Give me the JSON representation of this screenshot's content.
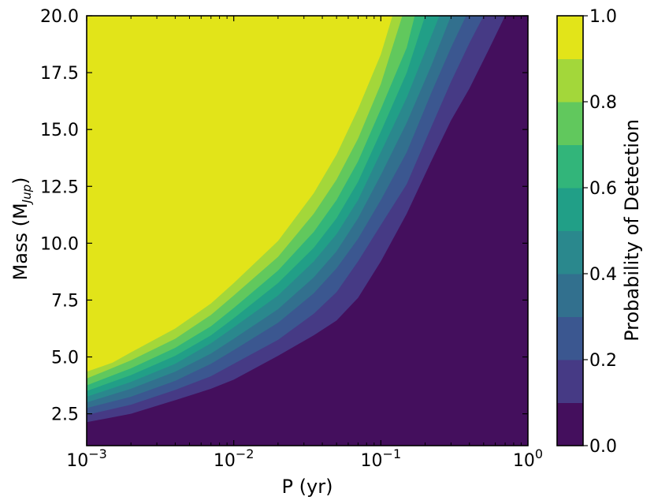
{
  "chart_data": {
    "type": "heatmap",
    "subtype": "filled-contour",
    "title": "",
    "xlabel": "P (yr)",
    "ylabel": "Mass (M_Jup)",
    "ylabel_main": "Mass (M",
    "ylabel_sub": "Jup",
    "ylabel_close": ")",
    "xscale": "log",
    "xlim": [
      0.001,
      1
    ],
    "ylim": [
      1.1,
      20.0
    ],
    "x_ticks": [
      {
        "base": "10",
        "exp": "−3",
        "value": 0.001
      },
      {
        "base": "10",
        "exp": "−2",
        "value": 0.01
      },
      {
        "base": "10",
        "exp": "−1",
        "value": 0.1
      },
      {
        "base": "10",
        "exp": "0",
        "value": 1
      }
    ],
    "y_ticks": [
      "2.5",
      "5.0",
      "7.5",
      "10.0",
      "12.5",
      "15.0",
      "17.5",
      "20.0"
    ],
    "colorbar": {
      "label": "Probability of Detection",
      "range": [
        0.0,
        1.0
      ],
      "ticks": [
        "0.0",
        "0.2",
        "0.4",
        "0.6",
        "0.8",
        "1.0"
      ],
      "levels": [
        0.0,
        0.1,
        0.2,
        0.3,
        0.4,
        0.5,
        0.6,
        0.7,
        0.8,
        0.9,
        1.0
      ],
      "colors": [
        "#440f5d",
        "#463a85",
        "#3b5790",
        "#32708e",
        "#2a888d",
        "#219f87",
        "#32b57a",
        "#61c85d",
        "#a3d73a",
        "#e2e419"
      ]
    },
    "contours": [
      {
        "level": 0.1,
        "points": [
          [
            0.001,
            2.13
          ],
          [
            0.002,
            2.5
          ],
          [
            0.004,
            3.1
          ],
          [
            0.007,
            3.6
          ],
          [
            0.01,
            4.0
          ],
          [
            0.02,
            5.05
          ],
          [
            0.035,
            5.95
          ],
          [
            0.05,
            6.6
          ],
          [
            0.07,
            7.6
          ],
          [
            0.1,
            9.2
          ],
          [
            0.15,
            11.3
          ],
          [
            0.22,
            13.6
          ],
          [
            0.3,
            15.4
          ],
          [
            0.4,
            16.8
          ],
          [
            0.55,
            18.6
          ],
          [
            0.7,
            20.0
          ]
        ]
      },
      {
        "level": 0.2,
        "points": [
          [
            0.001,
            2.45
          ],
          [
            0.002,
            2.9
          ],
          [
            0.004,
            3.55
          ],
          [
            0.007,
            4.15
          ],
          [
            0.01,
            4.7
          ],
          [
            0.02,
            5.75
          ],
          [
            0.035,
            6.9
          ],
          [
            0.05,
            7.85
          ],
          [
            0.07,
            9.2
          ],
          [
            0.1,
            10.8
          ],
          [
            0.15,
            12.6
          ],
          [
            0.22,
            15.1
          ],
          [
            0.3,
            17.1
          ],
          [
            0.4,
            18.8
          ],
          [
            0.5,
            20.0
          ]
        ]
      },
      {
        "level": 0.3,
        "points": [
          [
            0.001,
            2.75
          ],
          [
            0.002,
            3.25
          ],
          [
            0.004,
            3.95
          ],
          [
            0.007,
            4.7
          ],
          [
            0.01,
            5.3
          ],
          [
            0.02,
            6.5
          ],
          [
            0.035,
            7.8
          ],
          [
            0.05,
            8.9
          ],
          [
            0.07,
            10.2
          ],
          [
            0.1,
            11.9
          ],
          [
            0.15,
            14.0
          ],
          [
            0.22,
            16.6
          ],
          [
            0.3,
            18.6
          ],
          [
            0.38,
            20.0
          ]
        ]
      },
      {
        "level": 0.4,
        "points": [
          [
            0.001,
            3.0
          ],
          [
            0.002,
            3.6
          ],
          [
            0.004,
            4.35
          ],
          [
            0.007,
            5.15
          ],
          [
            0.01,
            5.8
          ],
          [
            0.02,
            7.1
          ],
          [
            0.035,
            8.5
          ],
          [
            0.05,
            9.65
          ],
          [
            0.07,
            11.1
          ],
          [
            0.1,
            13.0
          ],
          [
            0.15,
            15.3
          ],
          [
            0.22,
            17.8
          ],
          [
            0.3,
            20.0
          ]
        ]
      },
      {
        "level": 0.5,
        "points": [
          [
            0.001,
            3.25
          ],
          [
            0.002,
            3.9
          ],
          [
            0.004,
            4.7
          ],
          [
            0.007,
            5.6
          ],
          [
            0.01,
            6.3
          ],
          [
            0.02,
            7.7
          ],
          [
            0.035,
            9.2
          ],
          [
            0.05,
            10.4
          ],
          [
            0.07,
            11.9
          ],
          [
            0.1,
            14.0
          ],
          [
            0.15,
            16.4
          ],
          [
            0.22,
            19.1
          ],
          [
            0.25,
            20.0
          ]
        ]
      },
      {
        "level": 0.6,
        "points": [
          [
            0.001,
            3.5
          ],
          [
            0.002,
            4.2
          ],
          [
            0.004,
            5.05
          ],
          [
            0.007,
            5.95
          ],
          [
            0.01,
            6.7
          ],
          [
            0.02,
            8.25
          ],
          [
            0.035,
            9.8
          ],
          [
            0.05,
            11.1
          ],
          [
            0.07,
            12.7
          ],
          [
            0.1,
            14.9
          ],
          [
            0.15,
            17.5
          ],
          [
            0.2,
            20.0
          ]
        ]
      },
      {
        "level": 0.7,
        "points": [
          [
            0.001,
            3.75
          ],
          [
            0.002,
            4.5
          ],
          [
            0.004,
            5.4
          ],
          [
            0.007,
            6.35
          ],
          [
            0.01,
            7.15
          ],
          [
            0.02,
            8.8
          ],
          [
            0.035,
            10.5
          ],
          [
            0.05,
            11.9
          ],
          [
            0.07,
            13.6
          ],
          [
            0.1,
            15.9
          ],
          [
            0.15,
            18.6
          ],
          [
            0.17,
            20.0
          ]
        ]
      },
      {
        "level": 0.8,
        "points": [
          [
            0.001,
            4.05
          ],
          [
            0.002,
            4.85
          ],
          [
            0.004,
            5.8
          ],
          [
            0.007,
            6.85
          ],
          [
            0.01,
            7.7
          ],
          [
            0.02,
            9.4
          ],
          [
            0.035,
            11.3
          ],
          [
            0.05,
            12.8
          ],
          [
            0.07,
            14.6
          ],
          [
            0.1,
            17.0
          ],
          [
            0.14,
            20.0
          ]
        ]
      },
      {
        "level": 0.9,
        "points": [
          [
            0.001,
            4.35
          ],
          [
            0.0015,
            4.75
          ],
          [
            0.002,
            5.2
          ],
          [
            0.004,
            6.25
          ],
          [
            0.007,
            7.35
          ],
          [
            0.01,
            8.25
          ],
          [
            0.02,
            10.1
          ],
          [
            0.035,
            12.2
          ],
          [
            0.05,
            13.9
          ],
          [
            0.07,
            15.9
          ],
          [
            0.1,
            18.3
          ],
          [
            0.12,
            20.0
          ]
        ]
      }
    ]
  }
}
